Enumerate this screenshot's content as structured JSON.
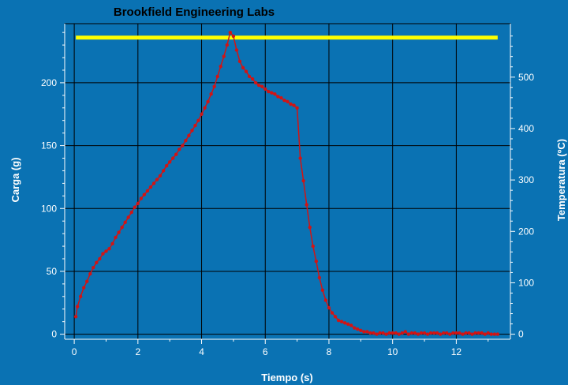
{
  "chart_data": {
    "type": "line",
    "title": "Brookfield Engineering Labs",
    "xlabel": "Tiempo (s)",
    "ylabel": "Carga (g)",
    "y2label": "Temperatura (ºC)",
    "xlim": [
      -0.3,
      13.7
    ],
    "ylim": [
      -4,
      247
    ],
    "y2lim": [
      -9.8,
      604
    ],
    "xticks": [
      "0",
      "2",
      "4",
      "6",
      "8",
      "10",
      "12"
    ],
    "yticks": [
      "0",
      "50",
      "100",
      "150",
      "200"
    ],
    "y2ticks": [
      "0",
      "100",
      "200",
      "300",
      "400",
      "500"
    ],
    "grid": true,
    "colors": {
      "background": "#0a72b3",
      "carga": "#d21414",
      "temperatura": "#ffff00",
      "grid": "#000000"
    },
    "series": [
      {
        "axis": "left",
        "marker": "circle",
        "x": [
          0.05,
          0.1,
          0.2,
          0.3,
          0.4,
          0.5,
          0.6,
          0.7,
          0.8,
          0.9,
          1.0,
          1.1,
          1.2,
          1.3,
          1.4,
          1.5,
          1.6,
          1.7,
          1.8,
          1.9,
          2.0,
          2.1,
          2.2,
          2.3,
          2.4,
          2.5,
          2.6,
          2.7,
          2.8,
          2.9,
          3.0,
          3.1,
          3.2,
          3.3,
          3.4,
          3.5,
          3.6,
          3.7,
          3.8,
          3.9,
          4.0,
          4.1,
          4.2,
          4.3,
          4.4,
          4.5,
          4.6,
          4.7,
          4.8,
          4.9,
          5.0,
          5.1,
          5.2,
          5.3,
          5.4,
          5.5,
          5.6,
          5.7,
          5.8,
          5.9,
          6.0,
          6.1,
          6.2,
          6.3,
          6.4,
          6.5,
          6.6,
          6.7,
          6.8,
          6.9,
          7.0,
          7.1,
          7.2,
          7.3,
          7.4,
          7.5,
          7.6,
          7.7,
          7.8,
          7.9,
          8.0,
          8.1,
          8.2,
          8.3,
          8.4,
          8.5,
          8.6,
          8.7,
          8.8,
          8.9,
          9.0,
          9.1,
          9.2,
          9.3,
          9.4,
          9.5,
          9.6,
          9.7,
          9.8,
          9.9,
          10.0,
          10.1,
          10.2,
          10.3,
          10.4,
          10.5,
          10.6,
          10.7,
          10.8,
          10.9,
          11.0,
          11.1,
          11.2,
          11.3,
          11.4,
          11.5,
          11.6,
          11.7,
          11.8,
          11.9,
          12.0,
          12.1,
          12.2,
          12.3,
          12.4,
          12.5,
          12.6,
          12.7,
          12.8,
          12.9,
          13.0,
          13.1,
          13.2,
          13.3
        ],
        "values": [
          14,
          22,
          30,
          37,
          42,
          48,
          53,
          57,
          60,
          64,
          66,
          68,
          72,
          77,
          81,
          85,
          89,
          93,
          97,
          101,
          104,
          108,
          111,
          114,
          117,
          120,
          123,
          126,
          130,
          134,
          137,
          140,
          143,
          147,
          150,
          154,
          158,
          162,
          166,
          170,
          175,
          180,
          185,
          191,
          197,
          205,
          213,
          221,
          230,
          240,
          237,
          226,
          217,
          212,
          209,
          205,
          203,
          200,
          198,
          197,
          195,
          193,
          192,
          191,
          189,
          188,
          186,
          185,
          183,
          182,
          180,
          140,
          122,
          103,
          85,
          70,
          58,
          45,
          35,
          27,
          21,
          17,
          14,
          11,
          10,
          9,
          8,
          7,
          5,
          4,
          3,
          2,
          2,
          1,
          1,
          0,
          1,
          1,
          0,
          1,
          1,
          1,
          0,
          1,
          2,
          0,
          1,
          1,
          0,
          1,
          1,
          0,
          1,
          1,
          1,
          0,
          1,
          1,
          0,
          1,
          1,
          1,
          0,
          1,
          1,
          0,
          1,
          1,
          1,
          0,
          1,
          0,
          0,
          0
        ]
      },
      {
        "axis": "right",
        "x": [
          0.05,
          13.3
        ],
        "values": [
          577,
          577
        ]
      }
    ]
  }
}
